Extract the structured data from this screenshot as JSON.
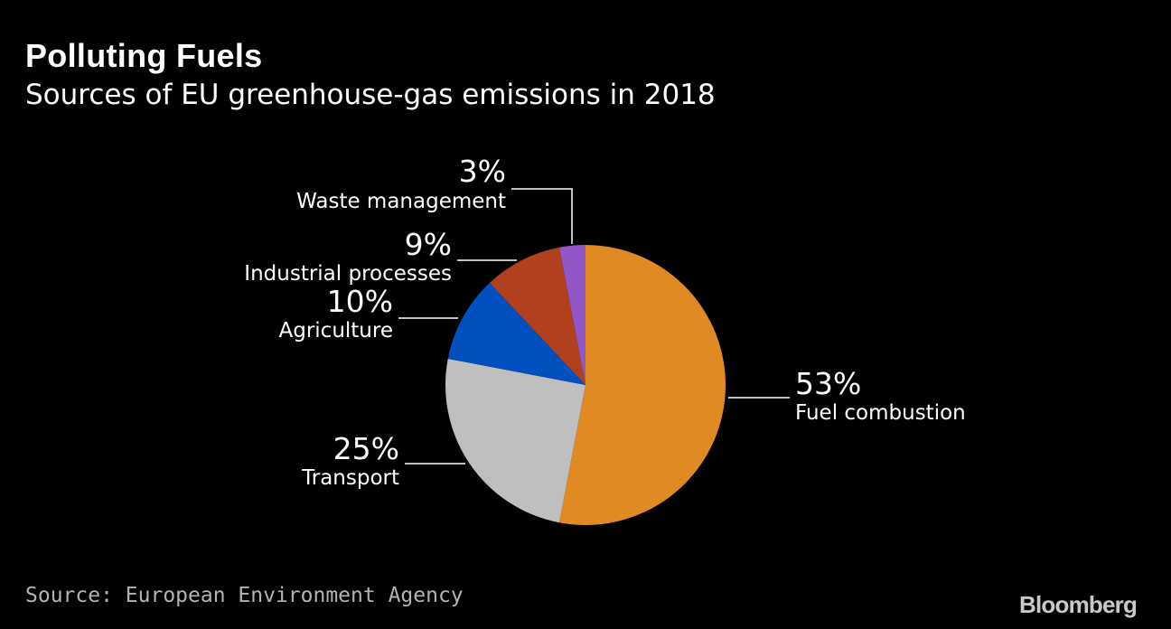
{
  "title": "Polluting Fuels",
  "subtitle": "Sources of EU greenhouse-gas emissions in 2018",
  "source": "Source: European Environment Agency",
  "brand": "Bloomberg",
  "chart_data": {
    "type": "pie",
    "title": "Polluting Fuels",
    "subtitle": "Sources of EU greenhouse-gas emissions in 2018",
    "unit": "%",
    "start": "12 o'clock, clockwise",
    "slices": [
      {
        "label": "Fuel combustion",
        "value": 53,
        "value_label": "53%",
        "color": "#e08a24"
      },
      {
        "label": "Transport",
        "value": 25,
        "value_label": "25%",
        "color": "#bfbfbf"
      },
      {
        "label": "Agriculture",
        "value": 10,
        "value_label": "10%",
        "color": "#0050c0"
      },
      {
        "label": "Industrial processes",
        "value": 9,
        "value_label": "9%",
        "color": "#b0401e"
      },
      {
        "label": "Waste management",
        "value": 3,
        "value_label": "3%",
        "color": "#9356c6"
      }
    ]
  }
}
